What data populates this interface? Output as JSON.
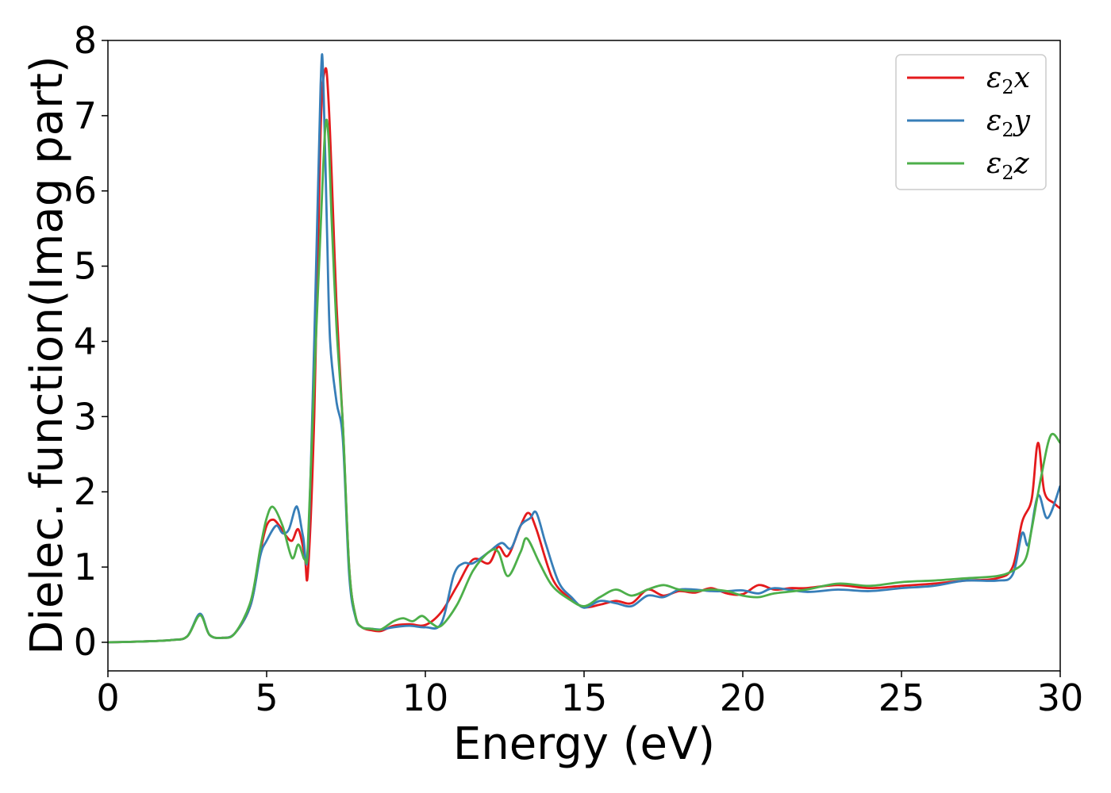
{
  "chart_data": {
    "type": "line",
    "title": "",
    "xlabel": "Energy (eV)",
    "ylabel": "Dielec. function(Imag part)",
    "xlim": [
      0,
      30
    ],
    "ylim": [
      -0.38,
      8
    ],
    "xticks": [
      0,
      5,
      10,
      15,
      20,
      25,
      30
    ],
    "yticks": [
      0,
      1,
      2,
      3,
      4,
      5,
      6,
      7,
      8
    ],
    "grid": false,
    "legend_position": "top-right",
    "series": [
      {
        "name": "ε2x",
        "legend": {
          "base": "ε",
          "sub": "2",
          "suffix": "x"
        },
        "color": "#e41a1c",
        "x": [
          0,
          1,
          2,
          2.5,
          2.9,
          3.2,
          3.6,
          4.0,
          4.5,
          4.8,
          5.0,
          5.2,
          5.4,
          5.6,
          5.8,
          6.0,
          6.2,
          6.3,
          6.5,
          6.7,
          6.85,
          6.95,
          7.05,
          7.2,
          7.4,
          7.6,
          7.8,
          8.0,
          8.3,
          8.6,
          9.0,
          9.5,
          10.0,
          10.5,
          11.0,
          11.5,
          12.0,
          12.3,
          12.6,
          13.0,
          13.25,
          13.5,
          14.0,
          14.5,
          15.0,
          15.5,
          16.0,
          16.5,
          17.0,
          17.5,
          18.0,
          18.5,
          19.0,
          19.5,
          20.0,
          20.5,
          21.0,
          21.5,
          22.0,
          23.0,
          24.0,
          25.0,
          26.0,
          27.0,
          28.0,
          28.5,
          28.8,
          29.1,
          29.3,
          29.5,
          29.8,
          30.0
        ],
        "y": [
          0,
          0.01,
          0.03,
          0.08,
          0.37,
          0.1,
          0.06,
          0.12,
          0.5,
          1.2,
          1.55,
          1.63,
          1.55,
          1.42,
          1.35,
          1.5,
          1.15,
          0.93,
          3.0,
          6.8,
          7.62,
          7.2,
          6.2,
          4.5,
          2.9,
          1.0,
          0.35,
          0.2,
          0.16,
          0.15,
          0.22,
          0.24,
          0.23,
          0.4,
          0.75,
          1.1,
          1.05,
          1.27,
          1.15,
          1.55,
          1.72,
          1.5,
          0.85,
          0.6,
          0.47,
          0.5,
          0.55,
          0.52,
          0.7,
          0.62,
          0.68,
          0.66,
          0.72,
          0.65,
          0.64,
          0.76,
          0.7,
          0.72,
          0.72,
          0.76,
          0.72,
          0.75,
          0.78,
          0.82,
          0.85,
          1.0,
          1.6,
          1.9,
          2.65,
          2.0,
          1.85,
          1.78
        ]
      },
      {
        "name": "ε2y",
        "legend": {
          "base": "ε",
          "sub": "2",
          "suffix": "y"
        },
        "color": "#377eb8",
        "x": [
          0,
          1,
          2,
          2.5,
          2.9,
          3.2,
          3.6,
          4.0,
          4.5,
          4.8,
          5.0,
          5.3,
          5.5,
          5.7,
          5.9,
          6.0,
          6.15,
          6.3,
          6.5,
          6.7,
          6.78,
          6.9,
          7.0,
          7.2,
          7.4,
          7.6,
          7.8,
          8.0,
          8.3,
          8.6,
          9.0,
          9.5,
          10.0,
          10.5,
          10.9,
          11.2,
          11.5,
          12.0,
          12.4,
          12.7,
          13.0,
          13.3,
          13.5,
          13.8,
          14.2,
          14.6,
          15.0,
          15.5,
          16.0,
          16.5,
          17.0,
          17.5,
          18.0,
          18.5,
          19.0,
          19.5,
          20.0,
          20.5,
          21.0,
          22.0,
          23.0,
          24.0,
          25.0,
          26.0,
          27.0,
          28.0,
          28.5,
          28.8,
          29.0,
          29.3,
          29.6,
          30.0
        ],
        "y": [
          0,
          0.01,
          0.03,
          0.08,
          0.38,
          0.1,
          0.06,
          0.12,
          0.5,
          1.15,
          1.35,
          1.55,
          1.45,
          1.5,
          1.78,
          1.75,
          1.4,
          1.2,
          4.0,
          7.4,
          7.55,
          5.5,
          4.0,
          3.2,
          2.7,
          0.9,
          0.33,
          0.2,
          0.18,
          0.17,
          0.2,
          0.22,
          0.2,
          0.25,
          0.9,
          1.05,
          1.05,
          1.2,
          1.32,
          1.25,
          1.55,
          1.65,
          1.72,
          1.3,
          0.8,
          0.6,
          0.46,
          0.55,
          0.52,
          0.48,
          0.62,
          0.6,
          0.7,
          0.7,
          0.68,
          0.68,
          0.69,
          0.65,
          0.72,
          0.67,
          0.7,
          0.68,
          0.72,
          0.75,
          0.82,
          0.82,
          0.9,
          1.45,
          1.3,
          1.95,
          1.65,
          2.08
        ]
      },
      {
        "name": "ε2z",
        "legend": {
          "base": "ε",
          "sub": "2",
          "suffix": "z"
        },
        "color": "#4daf4a",
        "x": [
          0,
          1,
          2,
          2.5,
          2.9,
          3.2,
          3.6,
          4.0,
          4.5,
          4.8,
          5.0,
          5.2,
          5.5,
          5.8,
          6.0,
          6.2,
          6.3,
          6.5,
          6.7,
          6.85,
          6.95,
          7.05,
          7.2,
          7.4,
          7.6,
          7.8,
          8.0,
          8.3,
          8.6,
          9.0,
          9.3,
          9.6,
          9.9,
          10.2,
          10.5,
          11.0,
          11.5,
          12.0,
          12.3,
          12.6,
          13.0,
          13.2,
          13.6,
          14.0,
          14.5,
          15.0,
          15.5,
          16.0,
          16.5,
          17.0,
          17.5,
          18.0,
          18.5,
          19.0,
          19.5,
          20.0,
          20.5,
          21.0,
          22.0,
          23.0,
          24.0,
          25.0,
          26.0,
          27.0,
          28.0,
          28.5,
          28.9,
          29.1,
          29.4,
          29.7,
          30.0
        ],
        "y": [
          0,
          0.01,
          0.03,
          0.08,
          0.36,
          0.1,
          0.06,
          0.12,
          0.55,
          1.25,
          1.65,
          1.8,
          1.55,
          1.12,
          1.3,
          1.1,
          1.3,
          3.5,
          5.5,
          6.85,
          6.7,
          5.6,
          4.2,
          2.9,
          1.0,
          0.35,
          0.2,
          0.18,
          0.17,
          0.28,
          0.32,
          0.28,
          0.35,
          0.25,
          0.22,
          0.5,
          0.95,
          1.2,
          1.2,
          0.88,
          1.2,
          1.38,
          1.05,
          0.75,
          0.58,
          0.48,
          0.6,
          0.7,
          0.62,
          0.7,
          0.76,
          0.7,
          0.68,
          0.7,
          0.68,
          0.62,
          0.6,
          0.65,
          0.7,
          0.78,
          0.75,
          0.8,
          0.82,
          0.85,
          0.88,
          0.95,
          1.1,
          1.5,
          2.2,
          2.75,
          2.65
        ]
      }
    ]
  }
}
